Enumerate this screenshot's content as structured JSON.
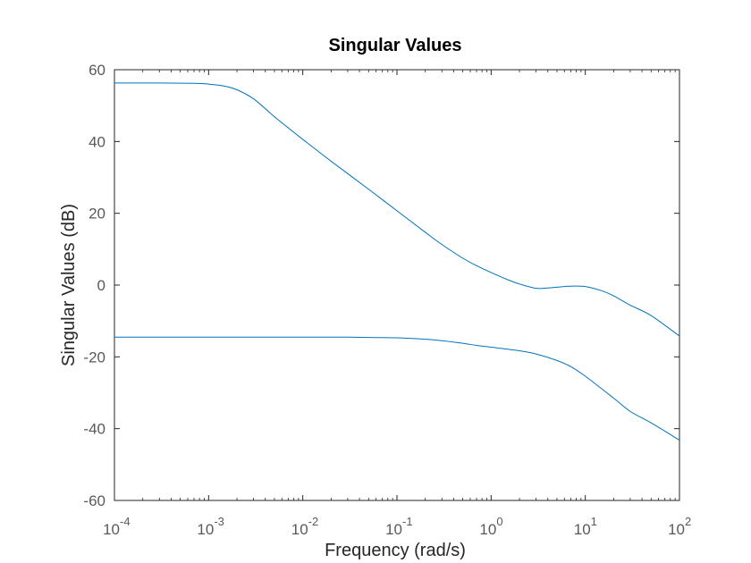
{
  "chart_data": {
    "type": "line",
    "title": "Singular Values",
    "xlabel": "Frequency (rad/s)",
    "ylabel": "Singular Values (dB)",
    "x_scale": "log",
    "xlim": [
      0.0001,
      100
    ],
    "ylim": [
      -60,
      60
    ],
    "x_ticks": [
      {
        "base": "10",
        "exp": "-4",
        "value": 0.0001
      },
      {
        "base": "10",
        "exp": "-3",
        "value": 0.001
      },
      {
        "base": "10",
        "exp": "-2",
        "value": 0.01
      },
      {
        "base": "10",
        "exp": "-1",
        "value": 0.1
      },
      {
        "base": "10",
        "exp": "0",
        "value": 1
      },
      {
        "base": "10",
        "exp": "1",
        "value": 10
      },
      {
        "base": "10",
        "exp": "2",
        "value": 100
      }
    ],
    "y_ticks": [
      {
        "label": "60",
        "value": 60
      },
      {
        "label": "40",
        "value": 40
      },
      {
        "label": "20",
        "value": 20
      },
      {
        "label": "0",
        "value": 0
      },
      {
        "label": "-20",
        "value": -20
      },
      {
        "label": "-40",
        "value": -40
      },
      {
        "label": "-60",
        "value": -60
      }
    ],
    "grid": false,
    "legend": "none",
    "line_color": "#0072BD",
    "series": [
      {
        "x": [
          0.0001,
          0.0003,
          0.0007,
          0.001,
          0.0015,
          0.002,
          0.003,
          0.005,
          0.007,
          0.01,
          0.02,
          0.05,
          0.1,
          0.2,
          0.3,
          0.5,
          0.7,
          1,
          1.5,
          2,
          3,
          4,
          5,
          7,
          10,
          15,
          20,
          30,
          50,
          100
        ],
        "y": [
          56.3,
          56.3,
          56.2,
          56,
          55.4,
          54.4,
          51.9,
          46.9,
          43.8,
          40.6,
          34.5,
          26.7,
          20.7,
          14.7,
          11.3,
          7.5,
          5.4,
          3.5,
          1.5,
          0.3,
          -0.9,
          -0.8,
          -0.6,
          -0.3,
          -0.4,
          -1.6,
          -3,
          -5.6,
          -8.5,
          -14.2
        ]
      },
      {
        "x": [
          0.0001,
          0.001,
          0.01,
          0.03,
          0.05,
          0.1,
          0.2,
          0.3,
          0.5,
          0.7,
          1,
          2,
          3,
          5,
          7,
          10,
          20,
          30,
          50,
          100
        ],
        "y": [
          -14.5,
          -14.5,
          -14.5,
          -14.5,
          -14.6,
          -14.7,
          -15.1,
          -15.5,
          -16.2,
          -16.8,
          -17.3,
          -18.3,
          -19.2,
          -21,
          -22.7,
          -25.4,
          -31.5,
          -35.2,
          -38.4,
          -43.2
        ]
      }
    ]
  }
}
